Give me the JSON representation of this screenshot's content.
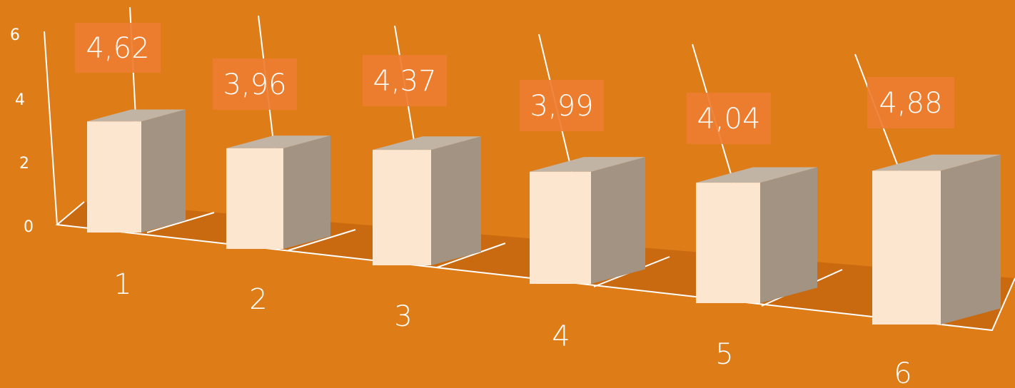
{
  "chart_data": {
    "type": "bar",
    "categories": [
      "1",
      "2",
      "3",
      "4",
      "5",
      "6"
    ],
    "values": [
      4.62,
      3.96,
      4.37,
      3.99,
      4.04,
      4.88
    ],
    "value_labels": [
      "4,62",
      "3,96",
      "4,37",
      "3,99",
      "4,04",
      "4,88"
    ],
    "y_ticks": [
      "0",
      "2",
      "4",
      "6"
    ],
    "ylim": [
      0,
      6
    ],
    "title": "",
    "xlabel": "",
    "ylabel": "",
    "grid": true,
    "legend": "none",
    "colors": {
      "background": "#DE7C18",
      "floor": "#C96A10",
      "bar_front": "#FDE6CF",
      "bar_side": "#A39383",
      "bar_top": "#C2B4A5",
      "label_box": "#ED7D31",
      "lines": "#FFFFFF"
    }
  }
}
